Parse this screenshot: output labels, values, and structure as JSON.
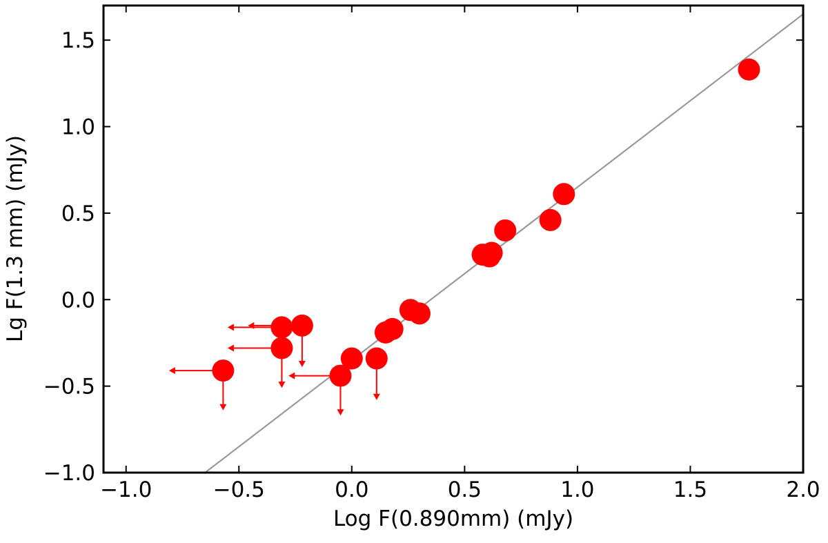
{
  "chart_data": {
    "type": "scatter",
    "title": "",
    "xlabel": "Log F(0.890mm) (mJy)",
    "ylabel": "Lg F(1.3 mm) (mJy)",
    "xlim": [
      -1.1,
      2.0
    ],
    "ylim": [
      -1.0,
      1.7
    ],
    "xticks": [
      -1.0,
      -0.5,
      0.0,
      0.5,
      1.0,
      1.5,
      2.0
    ],
    "xtick_labels": [
      "−1.0",
      "−0.5",
      "0.0",
      "0.5",
      "1.0",
      "1.5",
      "2.0"
    ],
    "yticks": [
      -1.0,
      -0.5,
      0.0,
      0.5,
      1.0,
      1.5
    ],
    "ytick_labels": [
      "−1.0",
      "−0.5",
      "0.0",
      "0.5",
      "1.0",
      "1.5"
    ],
    "grid": false,
    "point_color": "#ff0000",
    "arrow_color": "#ff0000",
    "fit_line": {
      "color": "#999999",
      "x": [
        -0.65,
        2.0
      ],
      "y": [
        -1.0,
        1.65
      ]
    },
    "points": [
      {
        "x": 1.76,
        "y": 1.33
      },
      {
        "x": 0.94,
        "y": 0.61
      },
      {
        "x": 0.88,
        "y": 0.46
      },
      {
        "x": 0.68,
        "y": 0.4
      },
      {
        "x": 0.62,
        "y": 0.27
      },
      {
        "x": 0.61,
        "y": 0.25
      },
      {
        "x": 0.58,
        "y": 0.26
      },
      {
        "x": 0.3,
        "y": -0.08
      },
      {
        "x": 0.26,
        "y": -0.06
      },
      {
        "x": 0.18,
        "y": -0.17
      },
      {
        "x": 0.15,
        "y": -0.19
      },
      {
        "x": 0.0,
        "y": -0.34
      },
      {
        "x": 0.11,
        "y": -0.34,
        "arrow_y_to": -0.58
      },
      {
        "x": -0.05,
        "y": -0.44,
        "arrow_y_to": -0.67,
        "arrow_x_to": -0.28
      },
      {
        "x": -0.22,
        "y": -0.15,
        "arrow_y_to": -0.39,
        "arrow_x_to": -0.46
      },
      {
        "x": -0.31,
        "y": -0.16,
        "arrow_x_to": -0.55
      },
      {
        "x": -0.31,
        "y": -0.28,
        "arrow_y_to": -0.51,
        "arrow_x_to": -0.55
      },
      {
        "x": -0.57,
        "y": -0.41,
        "arrow_y_to": -0.64,
        "arrow_x_to": -0.81
      }
    ]
  }
}
